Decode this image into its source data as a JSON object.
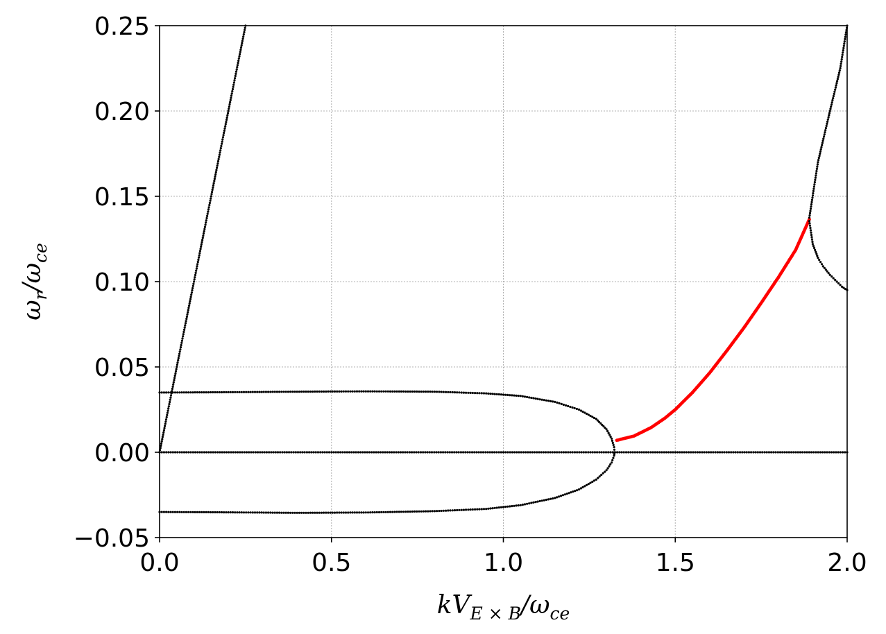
{
  "chart_data": {
    "type": "scatter",
    "title": "",
    "xlabel": {
      "main": "kV",
      "sub": "E × B",
      "tail": "/ω",
      "tailsub": "ce"
    },
    "ylabel": {
      "main": "ω",
      "sub": "r",
      "tail": "/ω",
      "tailsub": "ce"
    },
    "xlim": [
      0.0,
      2.0
    ],
    "ylim": [
      -0.05,
      0.25
    ],
    "xticks": [
      0.0,
      0.5,
      1.0,
      1.5,
      2.0
    ],
    "xtick_labels": [
      "0.0",
      "0.5",
      "1.0",
      "1.5",
      "2.0"
    ],
    "yticks": [
      -0.05,
      0.0,
      0.05,
      0.1,
      0.15,
      0.2,
      0.25
    ],
    "ytick_labels": [
      "−0.05",
      "0.00",
      "0.05",
      "0.10",
      "0.15",
      "0.20",
      "0.25"
    ],
    "grid": true,
    "series": [
      {
        "color": "#000000",
        "points": [
          [
            0.0,
            0.0
          ],
          [
            0.1,
            0.1
          ],
          [
            0.2,
            0.2
          ],
          [
            0.25,
            0.25
          ]
        ]
      },
      {
        "color": "#000000",
        "points": [
          [
            0.0,
            0.0
          ],
          [
            0.5,
            0.0
          ],
          [
            1.0,
            0.0
          ],
          [
            1.5,
            0.0
          ],
          [
            2.0,
            0.0
          ]
        ]
      },
      {
        "color": "#000000",
        "points": [
          [
            0.0,
            0.035
          ],
          [
            0.2,
            0.0352
          ],
          [
            0.4,
            0.0355
          ],
          [
            0.6,
            0.0357
          ],
          [
            0.8,
            0.0355
          ],
          [
            0.95,
            0.0345
          ],
          [
            1.05,
            0.033
          ],
          [
            1.15,
            0.0295
          ],
          [
            1.22,
            0.025
          ],
          [
            1.27,
            0.0195
          ],
          [
            1.3,
            0.0135
          ],
          [
            1.315,
            0.008
          ],
          [
            1.322,
            0.003
          ],
          [
            1.324,
            0.0
          ]
        ]
      },
      {
        "color": "#000000",
        "points": [
          [
            0.0,
            -0.035
          ],
          [
            0.2,
            -0.0352
          ],
          [
            0.4,
            -0.0355
          ],
          [
            0.6,
            -0.0353
          ],
          [
            0.8,
            -0.0345
          ],
          [
            0.95,
            -0.0332
          ],
          [
            1.05,
            -0.031
          ],
          [
            1.15,
            -0.0268
          ],
          [
            1.22,
            -0.0218
          ],
          [
            1.27,
            -0.016
          ],
          [
            1.3,
            -0.0105
          ],
          [
            1.315,
            -0.006
          ],
          [
            1.322,
            -0.002
          ],
          [
            1.324,
            0.0
          ]
        ]
      },
      {
        "color": "#ff0000",
        "points": [
          [
            1.33,
            0.007
          ],
          [
            1.38,
            0.0095
          ],
          [
            1.43,
            0.0145
          ],
          [
            1.47,
            0.02
          ],
          [
            1.5,
            0.025
          ],
          [
            1.55,
            0.035
          ],
          [
            1.6,
            0.0465
          ],
          [
            1.65,
            0.0595
          ],
          [
            1.7,
            0.073
          ],
          [
            1.75,
            0.0875
          ],
          [
            1.8,
            0.1025
          ],
          [
            1.85,
            0.1185
          ],
          [
            1.89,
            0.1365
          ]
        ]
      },
      {
        "color": "#000000",
        "points": [
          [
            1.89,
            0.1375
          ],
          [
            1.915,
            0.17
          ],
          [
            1.95,
            0.2
          ],
          [
            1.98,
            0.225
          ],
          [
            2.0,
            0.25
          ]
        ]
      },
      {
        "color": "#000000",
        "points": [
          [
            1.89,
            0.1355
          ],
          [
            1.9,
            0.122
          ],
          [
            1.915,
            0.114
          ],
          [
            1.93,
            0.109
          ],
          [
            1.95,
            0.104
          ],
          [
            1.97,
            0.1
          ],
          [
            1.985,
            0.097
          ],
          [
            2.0,
            0.095
          ]
        ]
      }
    ]
  }
}
